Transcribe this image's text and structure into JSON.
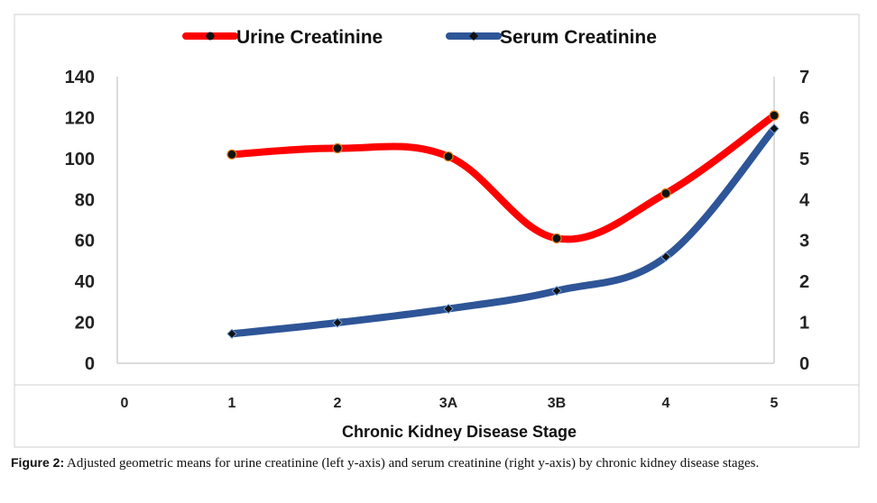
{
  "chart_data": {
    "type": "line",
    "categories": [
      "0",
      "1",
      "2",
      "3A",
      "3B",
      "4",
      "5"
    ],
    "xlabel": "Chronic Kidney Disease Stage",
    "series": [
      {
        "name": "Urine Creatinine",
        "axis": "left",
        "color": "#ff0000",
        "values": [
          null,
          102,
          105,
          101,
          61,
          83,
          121
        ]
      },
      {
        "name": "Serum Creatinine",
        "axis": "right",
        "color": "#2e5597",
        "values": [
          null,
          0.72,
          0.99,
          1.33,
          1.77,
          2.6,
          5.73
        ]
      }
    ],
    "y_left": {
      "ylim": [
        0,
        140
      ],
      "ticks": [
        "0",
        "20",
        "40",
        "60",
        "80",
        "100",
        "120",
        "140"
      ]
    },
    "y_right": {
      "ylim": [
        0,
        7
      ],
      "ticks": [
        "0",
        "1",
        "2",
        "3",
        "4",
        "5",
        "6",
        "7"
      ]
    },
    "legend_position": "top",
    "grid": false
  },
  "caption": {
    "label": "Figure 2:",
    "text": " Adjusted geometric means for urine creatinine (left y-axis) and serum creatinine (right y-axis) by chronic kidney disease stages."
  }
}
